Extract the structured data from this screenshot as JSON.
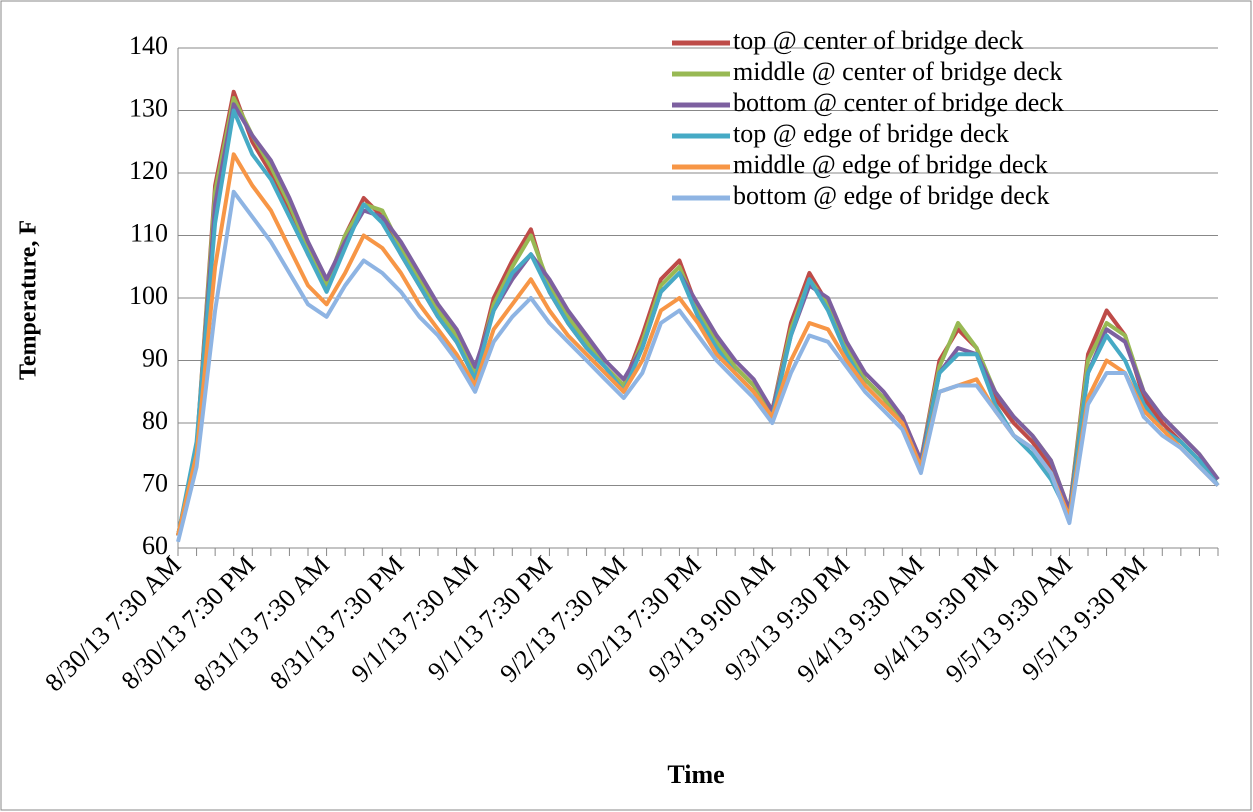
{
  "chart_data": {
    "type": "line",
    "y_label": "Temperature, F",
    "x_label": "Time",
    "categories": [
      "8/30/13 7:30 AM",
      null,
      null,
      null,
      "8/30/13 7:30 PM",
      null,
      null,
      null,
      "8/31/13 7:30 AM",
      null,
      null,
      null,
      "8/31/13 7:30 PM",
      null,
      null,
      null,
      "9/1/13 7:30 AM",
      null,
      null,
      null,
      "9/1/13 7:30 PM",
      null,
      null,
      null,
      "9/2/13 7:30 AM",
      null,
      null,
      null,
      "9/2/13 7:30 PM",
      null,
      null,
      null,
      "9/3/13 9:00 AM",
      null,
      null,
      null,
      "9/3/13 9:30 PM",
      null,
      null,
      null,
      "9/4/13 9:30 AM",
      null,
      null,
      null,
      "9/4/13 9:30 PM",
      null,
      null,
      null,
      "9/5/13 9:30 AM",
      null,
      null,
      null,
      "9/5/13 9:30 PM",
      null,
      null,
      null,
      null
    ],
    "series": [
      {
        "name": "top @ center of bridge deck",
        "color": "#be4b48",
        "values": [
          62,
          76,
          118,
          133,
          125,
          120,
          114,
          107,
          102,
          110,
          116,
          113,
          107,
          102,
          97,
          93,
          88,
          100,
          106,
          111,
          101,
          96,
          92,
          89,
          86,
          94,
          103,
          106,
          98,
          93,
          89,
          86,
          82,
          96,
          104,
          99,
          92,
          87,
          84,
          81,
          74,
          90,
          95,
          92,
          84,
          80,
          77,
          73,
          66,
          91,
          98,
          94,
          84,
          80,
          77,
          74,
          71
        ]
      },
      {
        "name": "middle @ center of bridge deck",
        "color": "#98b954",
        "values": [
          62,
          76,
          117,
          132,
          126,
          121,
          115,
          108,
          102,
          110,
          115,
          114,
          108,
          103,
          98,
          94,
          88,
          99,
          105,
          110,
          102,
          97,
          93,
          89,
          86,
          93,
          102,
          105,
          98,
          93,
          89,
          86,
          82,
          95,
          103,
          99,
          92,
          87,
          84,
          80,
          74,
          89,
          96,
          92,
          85,
          81,
          78,
          74,
          66,
          90,
          96,
          94,
          85,
          81,
          78,
          75,
          71
        ]
      },
      {
        "name": "bottom @ center  of bridge deck",
        "color": "#7d60a0",
        "values": [
          62,
          76,
          115,
          131,
          126,
          122,
          116,
          109,
          103,
          109,
          114,
          113,
          109,
          104,
          99,
          95,
          89,
          98,
          103,
          107,
          103,
          98,
          94,
          90,
          87,
          92,
          101,
          104,
          99,
          94,
          90,
          87,
          82,
          94,
          102,
          100,
          93,
          88,
          85,
          81,
          74,
          88,
          92,
          91,
          85,
          81,
          78,
          74,
          66,
          88,
          95,
          93,
          85,
          81,
          78,
          75,
          71
        ]
      },
      {
        "name": "top @ edge of bridge deck",
        "color": "#46aac5",
        "values": [
          62,
          77,
          112,
          130,
          123,
          119,
          113,
          107,
          101,
          108,
          115,
          112,
          107,
          102,
          97,
          93,
          87,
          98,
          104,
          107,
          101,
          96,
          92,
          89,
          85,
          92,
          101,
          104,
          97,
          92,
          88,
          85,
          81,
          94,
          103,
          98,
          91,
          86,
          83,
          80,
          73,
          88,
          91,
          91,
          83,
          78,
          75,
          71,
          65,
          88,
          94,
          90,
          83,
          79,
          77,
          74,
          70
        ]
      },
      {
        "name": "middle @ edge of bridge deck",
        "color": "#f79646",
        "values": [
          62,
          75,
          105,
          123,
          118,
          114,
          108,
          102,
          99,
          104,
          110,
          108,
          104,
          99,
          95,
          91,
          86,
          95,
          99,
          103,
          98,
          94,
          91,
          88,
          85,
          90,
          98,
          100,
          96,
          91,
          88,
          85,
          81,
          90,
          96,
          95,
          90,
          86,
          83,
          80,
          73,
          85,
          86,
          87,
          82,
          78,
          76,
          72,
          65,
          84,
          90,
          88,
          82,
          79,
          76,
          73,
          70
        ]
      },
      {
        "name": "bottom @ edge of bridge deck",
        "color": "#8eb4e3",
        "values": [
          61,
          73,
          98,
          117,
          113,
          109,
          104,
          99,
          97,
          102,
          106,
          104,
          101,
          97,
          94,
          90,
          85,
          93,
          97,
          100,
          96,
          93,
          90,
          87,
          84,
          88,
          96,
          98,
          94,
          90,
          87,
          84,
          80,
          88,
          94,
          93,
          89,
          85,
          82,
          79,
          72,
          85,
          86,
          86,
          82,
          78,
          76,
          72,
          64,
          83,
          88,
          88,
          81,
          78,
          76,
          73,
          70
        ]
      }
    ],
    "ylim": [
      60,
      140
    ],
    "yticks": [
      60,
      70,
      80,
      90,
      100,
      110,
      120,
      130,
      140
    ],
    "grid": true
  }
}
